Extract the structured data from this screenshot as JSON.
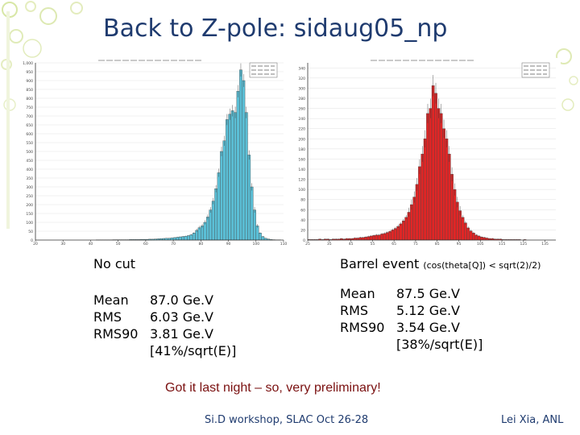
{
  "title": "Back to Z-pole: sidaug05_np",
  "panels": [
    {
      "name": "No cut",
      "subnote": "",
      "stats": [
        {
          "label": "Mean",
          "value": "87.0 Ge.V"
        },
        {
          "label": "RMS",
          "value": "6.03 Ge.V"
        },
        {
          "label": "RMS90",
          "value": "3.81 Ge.V"
        }
      ],
      "resolution": "[41%/sqrt(E)]"
    },
    {
      "name": "Barrel event",
      "subnote": "(cos(theta[Q]) < sqrt(2)/2)",
      "stats": [
        {
          "label": "Mean",
          "value": "87.5 Ge.V"
        },
        {
          "label": "RMS",
          "value": "5.12 Ge.V"
        },
        {
          "label": "RMS90",
          "value": "3.54 Ge.V"
        }
      ],
      "resolution": "[38%/sqrt(E)]"
    }
  ],
  "note": "Got it last night – so, very preliminary!",
  "footer": {
    "left": "Si.D workshop, SLAC Oct 26-28",
    "right": "Lei Xia, ANL"
  },
  "chart_data": [
    {
      "type": "bar",
      "color": "#5bbfd6",
      "xlim": [
        20,
        110
      ],
      "ylim": [
        0,
        1000
      ],
      "xticks": [
        "20",
        "30",
        "40",
        "50",
        "60",
        "70",
        "80",
        "90",
        "100",
        "110"
      ],
      "yticks": [
        "0",
        "50",
        "100",
        "150",
        "200",
        "250",
        "300",
        "350",
        "400",
        "450",
        "500",
        "550",
        "600",
        "650",
        "700",
        "750",
        "800",
        "850",
        "900",
        "950",
        "1,000"
      ],
      "bin_width": 1,
      "x_start": 20,
      "values": [
        0,
        0,
        0,
        0,
        0,
        0,
        0,
        0,
        0,
        0,
        0,
        0,
        0,
        0,
        0,
        0,
        0,
        0,
        0,
        0,
        0,
        0,
        1,
        1,
        1,
        1,
        1,
        1,
        2,
        2,
        2,
        2,
        2,
        2,
        3,
        3,
        3,
        3,
        4,
        4,
        4,
        5,
        5,
        6,
        7,
        8,
        9,
        10,
        10,
        12,
        14,
        16,
        18,
        20,
        22,
        25,
        30,
        40,
        55,
        70,
        80,
        100,
        130,
        170,
        220,
        290,
        380,
        500,
        560,
        680,
        710,
        730,
        720,
        840,
        960,
        900,
        720,
        480,
        300,
        170,
        80,
        40,
        20,
        10,
        6,
        3,
        2,
        1,
        1,
        0
      ]
    },
    {
      "type": "bar",
      "color": "#e02626",
      "xlim": [
        25,
        140
      ],
      "ylim": [
        0,
        350
      ],
      "xticks": [
        "25",
        "35",
        "45",
        "55",
        "65",
        "75",
        "85",
        "95",
        "105",
        "115",
        "125",
        "135"
      ],
      "yticks": [
        "0",
        "20",
        "40",
        "60",
        "80",
        "100",
        "120",
        "140",
        "160",
        "180",
        "200",
        "220",
        "240",
        "260",
        "280",
        "300",
        "320",
        "340"
      ],
      "bin_width": 1.25,
      "x_start": 25,
      "values": [
        1,
        1,
        1,
        1,
        2,
        1,
        2,
        2,
        1,
        2,
        2,
        2,
        3,
        2,
        3,
        3,
        3,
        4,
        4,
        5,
        5,
        6,
        7,
        8,
        9,
        10,
        10,
        12,
        13,
        15,
        17,
        20,
        23,
        27,
        32,
        38,
        45,
        55,
        70,
        85,
        110,
        145,
        170,
        200,
        250,
        260,
        305,
        290,
        260,
        250,
        220,
        200,
        170,
        130,
        100,
        75,
        58,
        45,
        34,
        24,
        18,
        14,
        10,
        8,
        6,
        5,
        4,
        3,
        3,
        2,
        2,
        2,
        1,
        1,
        1,
        1,
        1,
        1,
        1,
        0,
        1,
        0,
        0,
        0,
        0,
        0,
        0,
        0,
        0,
        0,
        0,
        0
      ]
    }
  ]
}
